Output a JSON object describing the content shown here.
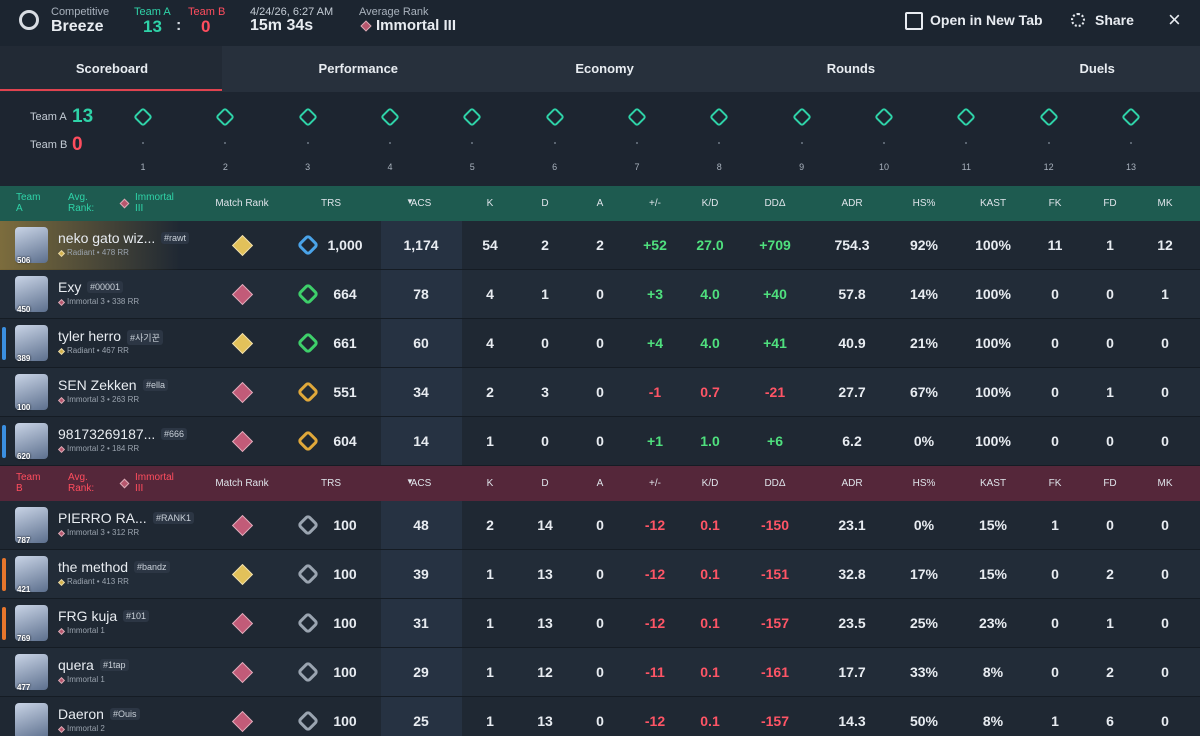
{
  "header": {
    "mode": "Competitive",
    "map": "Breeze",
    "team_a_label": "Team A",
    "team_a_score": "13",
    "separator": ":",
    "team_b_label": "Team B",
    "team_b_score": "0",
    "date": "4/24/26, 6:27 AM",
    "duration": "15m 34s",
    "avg_rank_label": "Average Rank",
    "avg_rank": "Immortal III",
    "open_tab": "Open in New Tab",
    "share": "Share"
  },
  "tabs": [
    "Scoreboard",
    "Performance",
    "Economy",
    "Rounds",
    "Duels"
  ],
  "rounds": {
    "team_a_label": "Team A",
    "team_a_score": "13",
    "team_b_label": "Team B",
    "team_b_score": "0",
    "numbers": [
      "1",
      "2",
      "3",
      "4",
      "5",
      "6",
      "7",
      "8",
      "9",
      "10",
      "11",
      "12",
      "13"
    ]
  },
  "columns": [
    "Match Rank",
    "TRS",
    "ACS",
    "K",
    "D",
    "A",
    "+/-",
    "K/D",
    "DDΔ",
    "ADR",
    "HS%",
    "KAST",
    "FK",
    "FD",
    "MK"
  ],
  "teams": [
    {
      "label": "Team A",
      "avg_rank_label": "Avg. Rank:",
      "avg_rank": "Immortal III",
      "color": "#2fd3a8",
      "header_bg": "#1e5b50",
      "players": [
        {
          "name": "neko gato wiz...",
          "tag": "#rawt",
          "rank": "Radiant • 478 RR",
          "level": "506",
          "trs": "1,000",
          "acs": "1,174",
          "k": "54",
          "d": "2",
          "a": "2",
          "pm": "+52",
          "kd": "27.0",
          "dd": "+709",
          "adr": "754.3",
          "hs": "92%",
          "kast": "100%",
          "fk": "11",
          "fd": "1",
          "mk": "12",
          "trs_color": "#4aa3e8"
        },
        {
          "name": "Exy",
          "tag": "#00001",
          "rank": "Immortal 3 • 338 RR",
          "level": "450",
          "trs": "664",
          "acs": "78",
          "k": "4",
          "d": "1",
          "a": "0",
          "pm": "+3",
          "kd": "4.0",
          "dd": "+40",
          "adr": "57.8",
          "hs": "14%",
          "kast": "100%",
          "fk": "0",
          "fd": "0",
          "mk": "1",
          "trs_color": "#3ecf6a"
        },
        {
          "name": "tyler herro",
          "tag": "#사기꾼",
          "rank": "Radiant • 467 RR",
          "level": "389",
          "trs": "661",
          "acs": "60",
          "k": "4",
          "d": "0",
          "a": "0",
          "pm": "+4",
          "kd": "4.0",
          "dd": "+41",
          "adr": "40.9",
          "hs": "21%",
          "kast": "100%",
          "fk": "0",
          "fd": "0",
          "mk": "0",
          "trs_color": "#3ecf6a",
          "accent": "#3b8fe0"
        },
        {
          "name": "SEN Zekken",
          "tag": "#ella",
          "rank": "Immortal 3 • 263 RR",
          "level": "100",
          "trs": "551",
          "acs": "34",
          "k": "2",
          "d": "3",
          "a": "0",
          "pm": "-1",
          "kd": "0.7",
          "dd": "-21",
          "adr": "27.7",
          "hs": "67%",
          "kast": "100%",
          "fk": "0",
          "fd": "1",
          "mk": "0",
          "trs_color": "#e0a83a"
        },
        {
          "name": "98173269187...",
          "tag": "#666",
          "rank": "Immortal 2 • 184 RR",
          "level": "620",
          "trs": "604",
          "acs": "14",
          "k": "1",
          "d": "0",
          "a": "0",
          "pm": "+1",
          "kd": "1.0",
          "dd": "+6",
          "adr": "6.2",
          "hs": "0%",
          "kast": "100%",
          "fk": "0",
          "fd": "0",
          "mk": "0",
          "trs_color": "#e0a83a",
          "accent": "#3b8fe0"
        }
      ]
    },
    {
      "label": "Team B",
      "avg_rank_label": "Avg. Rank:",
      "avg_rank": "Immortal III",
      "color": "#ff4d5e",
      "header_bg": "#55273a",
      "players": [
        {
          "name": "PIERRO RA...",
          "tag": "#RANK1",
          "rank": "Immortal 3 • 312 RR",
          "level": "787",
          "trs": "100",
          "acs": "48",
          "k": "2",
          "d": "14",
          "a": "0",
          "pm": "-12",
          "kd": "0.1",
          "dd": "-150",
          "adr": "23.1",
          "hs": "0%",
          "kast": "15%",
          "fk": "1",
          "fd": "0",
          "mk": "0",
          "trs_color": "#9aa4b0"
        },
        {
          "name": "the method",
          "tag": "#bandz",
          "rank": "Radiant • 413 RR",
          "level": "421",
          "trs": "100",
          "acs": "39",
          "k": "1",
          "d": "13",
          "a": "0",
          "pm": "-12",
          "kd": "0.1",
          "dd": "-151",
          "adr": "32.8",
          "hs": "17%",
          "kast": "15%",
          "fk": "0",
          "fd": "2",
          "mk": "0",
          "trs_color": "#9aa4b0",
          "accent": "#e8762c"
        },
        {
          "name": "FRG kuja",
          "tag": "#101",
          "rank": "Immortal 1",
          "level": "769",
          "trs": "100",
          "acs": "31",
          "k": "1",
          "d": "13",
          "a": "0",
          "pm": "-12",
          "kd": "0.1",
          "dd": "-157",
          "adr": "23.5",
          "hs": "25%",
          "kast": "23%",
          "fk": "0",
          "fd": "1",
          "mk": "0",
          "trs_color": "#9aa4b0",
          "accent": "#e8762c"
        },
        {
          "name": "quera",
          "tag": "#1tap",
          "rank": "Immortal 1",
          "level": "477",
          "trs": "100",
          "acs": "29",
          "k": "1",
          "d": "12",
          "a": "0",
          "pm": "-11",
          "kd": "0.1",
          "dd": "-161",
          "adr": "17.7",
          "hs": "33%",
          "kast": "8%",
          "fk": "0",
          "fd": "2",
          "mk": "0",
          "trs_color": "#9aa4b0"
        },
        {
          "name": "Daeron",
          "tag": "#Ouis",
          "rank": "Immortal 2",
          "trs": "100",
          "acs": "25",
          "k": "1",
          "d": "13",
          "a": "0",
          "pm": "-12",
          "kd": "0.1",
          "dd": "-157",
          "adr": "14.3",
          "hs": "50%",
          "kast": "8%",
          "fk": "1",
          "fd": "6",
          "mk": "0",
          "trs_color": "#9aa4b0"
        }
      ]
    }
  ]
}
